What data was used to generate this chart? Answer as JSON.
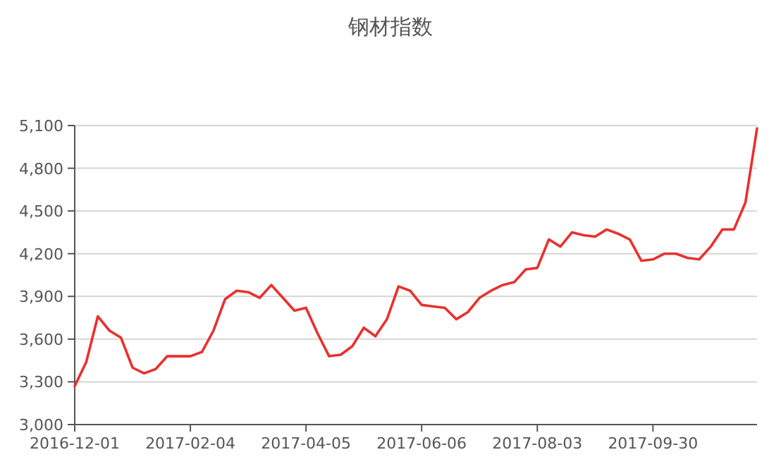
{
  "chart_data": {
    "type": "line",
    "title": "钢材指数",
    "categories": [
      "2016-12-01",
      null,
      null,
      null,
      null,
      null,
      null,
      null,
      null,
      null,
      "2017-02-04",
      null,
      null,
      null,
      null,
      null,
      null,
      null,
      null,
      null,
      "2017-04-05",
      null,
      null,
      null,
      null,
      null,
      null,
      null,
      null,
      null,
      "2017-06-06",
      null,
      null,
      null,
      null,
      null,
      null,
      null,
      null,
      null,
      "2017-08-03",
      null,
      null,
      null,
      null,
      null,
      null,
      null,
      null,
      null,
      "2017-09-30",
      null,
      null,
      null,
      null,
      null,
      null,
      null,
      null,
      null
    ],
    "series": [
      {
        "color": "#e8312f",
        "values": [
          3270,
          3440,
          3760,
          3660,
          3610,
          3400,
          3360,
          3390,
          3480,
          3480,
          3480,
          3510,
          3660,
          3880,
          3940,
          3930,
          3890,
          3980,
          3890,
          3800,
          3820,
          3640,
          3480,
          3490,
          3550,
          3680,
          3620,
          3740,
          3970,
          3940,
          3840,
          3830,
          3820,
          3740,
          3790,
          3890,
          3940,
          3980,
          4000,
          4090,
          4100,
          4300,
          4250,
          4350,
          4330,
          4320,
          4370,
          4340,
          4300,
          4150,
          4160,
          4200,
          4200,
          4170,
          4160,
          4250,
          4370,
          4370,
          4560,
          5080
        ]
      }
    ],
    "ylim": [
      3000,
      5100
    ],
    "yticks": [
      {
        "value": 3000,
        "label": "3,000"
      },
      {
        "value": 3300,
        "label": "3,300"
      },
      {
        "value": 3600,
        "label": "3,600"
      },
      {
        "value": 3900,
        "label": "3,900"
      },
      {
        "value": 4200,
        "label": "4,200"
      },
      {
        "value": 4500,
        "label": "4,500"
      },
      {
        "value": 4800,
        "label": "4,800"
      },
      {
        "value": 5100,
        "label": "5,100"
      }
    ],
    "grid": "y",
    "line_style": "solid"
  }
}
